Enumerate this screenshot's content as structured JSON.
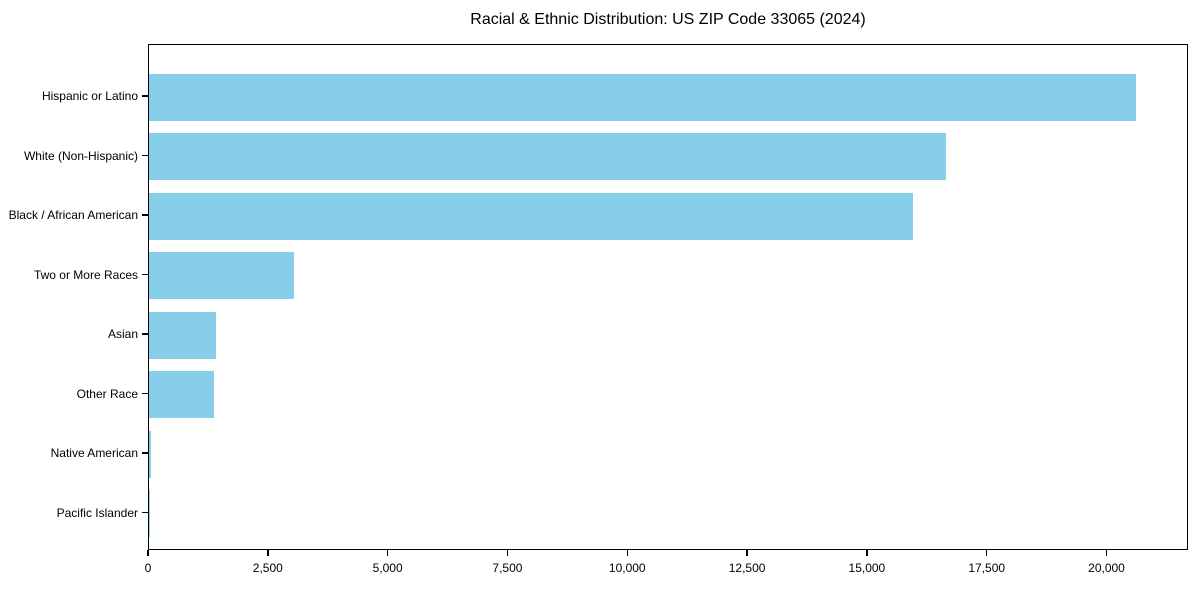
{
  "chart_data": {
    "type": "bar",
    "orientation": "horizontal",
    "title": "Racial & Ethnic Distribution: US ZIP Code 33065 (2024)",
    "xlabel": "",
    "ylabel": "",
    "categories": [
      "Hispanic or Latino",
      "White (Non-Hispanic)",
      "Black / African American",
      "Two or More Races",
      "Asian",
      "Other Race",
      "Native American",
      "Pacific Islander"
    ],
    "values": [
      20600,
      16640,
      15950,
      3020,
      1400,
      1350,
      40,
      15
    ],
    "xlim": [
      0,
      21700
    ],
    "xticks": [
      0,
      2500,
      5000,
      7500,
      10000,
      12500,
      15000,
      17500,
      20000
    ],
    "xtick_labels": [
      "0",
      "2,500",
      "5,000",
      "7,500",
      "10,000",
      "12,500",
      "15,000",
      "17,500",
      "20,000"
    ],
    "bar_color": "#87CEEB",
    "spine_color": "#000000",
    "background_color": "#FFFFFF",
    "grid": false,
    "legend": null
  }
}
